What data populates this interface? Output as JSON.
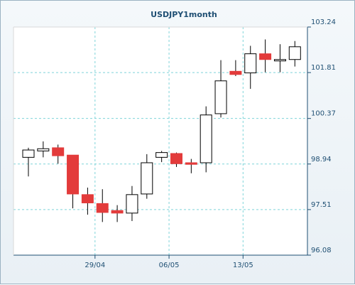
{
  "chart_data": {
    "type": "candlestick",
    "title": "USDJPY1month",
    "ylim": [
      96.08,
      103.24
    ],
    "y_ticks": [
      "103.24",
      "101.81",
      "100.37",
      "98.94",
      "97.51",
      "96.08"
    ],
    "x_ticks": [
      "29/04",
      "06/05",
      "13/05"
    ],
    "grid": true,
    "colors": {
      "up_fill": "#ffffff",
      "down_fill": "#e33b3b",
      "outline": "#000000",
      "grid": "#7fd4d9",
      "axis": "#1f4f73",
      "text": "#1f4f73"
    },
    "candles": [
      {
        "open": 99.15,
        "high": 99.45,
        "low": 98.55,
        "close": 99.38
      },
      {
        "open": 99.35,
        "high": 99.65,
        "low": 99.15,
        "close": 99.42
      },
      {
        "open": 99.45,
        "high": 99.55,
        "low": 98.95,
        "close": 99.2
      },
      {
        "open": 99.22,
        "high": 99.22,
        "low": 97.55,
        "close": 98.0
      },
      {
        "open": 97.98,
        "high": 98.2,
        "low": 97.35,
        "close": 97.72
      },
      {
        "open": 97.7,
        "high": 98.15,
        "low": 97.12,
        "close": 97.42
      },
      {
        "open": 97.48,
        "high": 97.65,
        "low": 97.12,
        "close": 97.4
      },
      {
        "open": 97.4,
        "high": 98.25,
        "low": 97.15,
        "close": 97.98
      },
      {
        "open": 98.0,
        "high": 99.25,
        "low": 97.85,
        "close": 98.98
      },
      {
        "open": 99.15,
        "high": 99.35,
        "low": 99.0,
        "close": 99.3
      },
      {
        "open": 99.27,
        "high": 99.3,
        "low": 98.85,
        "close": 98.95
      },
      {
        "open": 98.98,
        "high": 99.1,
        "low": 98.65,
        "close": 98.93
      },
      {
        "open": 98.98,
        "high": 100.75,
        "low": 98.68,
        "close": 100.48
      },
      {
        "open": 100.52,
        "high": 102.2,
        "low": 100.4,
        "close": 101.55
      },
      {
        "open": 101.85,
        "high": 102.2,
        "low": 101.7,
        "close": 101.75
      },
      {
        "open": 101.8,
        "high": 102.65,
        "low": 101.3,
        "close": 102.4
      },
      {
        "open": 102.4,
        "high": 102.85,
        "low": 101.82,
        "close": 102.22
      },
      {
        "open": 102.2,
        "high": 102.7,
        "low": 101.82,
        "close": 102.22
      },
      {
        "open": 102.22,
        "high": 102.8,
        "low": 102.0,
        "close": 102.62
      }
    ]
  }
}
